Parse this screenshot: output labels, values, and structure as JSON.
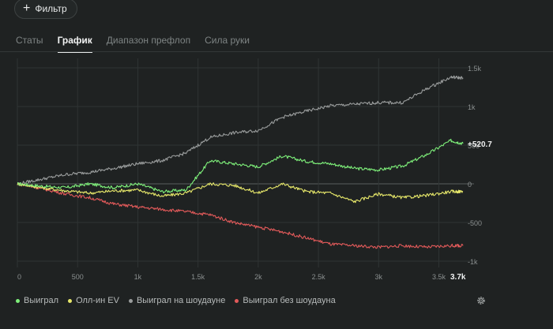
{
  "filter": {
    "label": "Фильтр",
    "icon": "plus-icon"
  },
  "tabs": [
    {
      "label": "Статы",
      "active": false
    },
    {
      "label": "График",
      "active": true
    },
    {
      "label": "Диапазон префлоп",
      "active": false
    },
    {
      "label": "Сила руки",
      "active": false
    }
  ],
  "chart_data": {
    "type": "line",
    "title": "",
    "xlabel": "",
    "ylabel": "",
    "xlim": [
      0,
      3700
    ],
    "ylim": [
      -1000,
      1500
    ],
    "x_ticks": [
      "0",
      "500",
      "1k",
      "1.5k",
      "2k",
      "2.5k",
      "3k",
      "3.5k"
    ],
    "x_end_label": "3.7k",
    "y_ticks": [
      "1.5k",
      "1k",
      "500",
      "0",
      "-500",
      "-1k"
    ],
    "y_tick_values": [
      1500,
      1000,
      500,
      0,
      -500,
      -1000
    ],
    "grid": true,
    "end_value_label": "+520.7",
    "x": [
      0,
      200,
      400,
      600,
      800,
      1000,
      1200,
      1400,
      1600,
      1800,
      2000,
      2200,
      2400,
      2600,
      2800,
      3000,
      3200,
      3400,
      3600,
      3700
    ],
    "series": [
      {
        "name": "Выиграл",
        "color": "#7ef07a",
        "values": [
          0,
          -30,
          -50,
          0,
          -50,
          0,
          -100,
          -80,
          300,
          260,
          220,
          360,
          290,
          260,
          200,
          180,
          230,
          380,
          560,
          520
        ]
      },
      {
        "name": "Олл-ин EV",
        "color": "#e7e86a",
        "values": [
          0,
          -50,
          -90,
          -120,
          -90,
          -80,
          -160,
          -120,
          0,
          -20,
          -120,
          0,
          -100,
          -120,
          -230,
          -130,
          -180,
          -150,
          -100,
          -100
        ]
      },
      {
        "name": "Выиграл на шоудауне",
        "color": "#9a9d9d",
        "values": [
          0,
          60,
          120,
          150,
          200,
          260,
          300,
          400,
          600,
          660,
          690,
          860,
          940,
          1010,
          1030,
          1050,
          1050,
          1230,
          1380,
          1370
        ]
      },
      {
        "name": "Выиграл без шоудауна",
        "color": "#e25a5a",
        "values": [
          0,
          -60,
          -130,
          -180,
          -260,
          -300,
          -330,
          -360,
          -400,
          -500,
          -560,
          -620,
          -700,
          -780,
          -800,
          -820,
          -800,
          -820,
          -800,
          -800
        ]
      }
    ]
  },
  "settings": {
    "icon": "gear-icon"
  }
}
